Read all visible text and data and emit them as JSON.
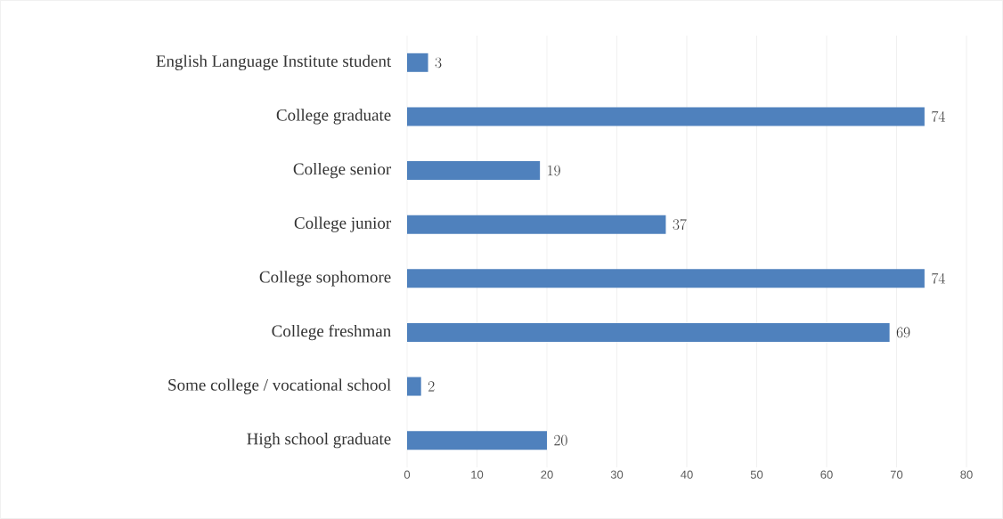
{
  "chart_data": {
    "type": "bar",
    "orientation": "horizontal",
    "categories": [
      "English Language Institute student",
      "College graduate",
      "College senior",
      "College junior",
      "College sophomore",
      "College freshman",
      "Some college / vocational school",
      "High school graduate"
    ],
    "values": [
      3,
      74,
      19,
      37,
      74,
      69,
      2,
      20
    ],
    "color": "#4f81bd",
    "xlim": [
      0,
      80
    ],
    "xticks": [
      0,
      10,
      20,
      30,
      40,
      50,
      60,
      70,
      80
    ],
    "grid": "x",
    "data_labels": true
  }
}
